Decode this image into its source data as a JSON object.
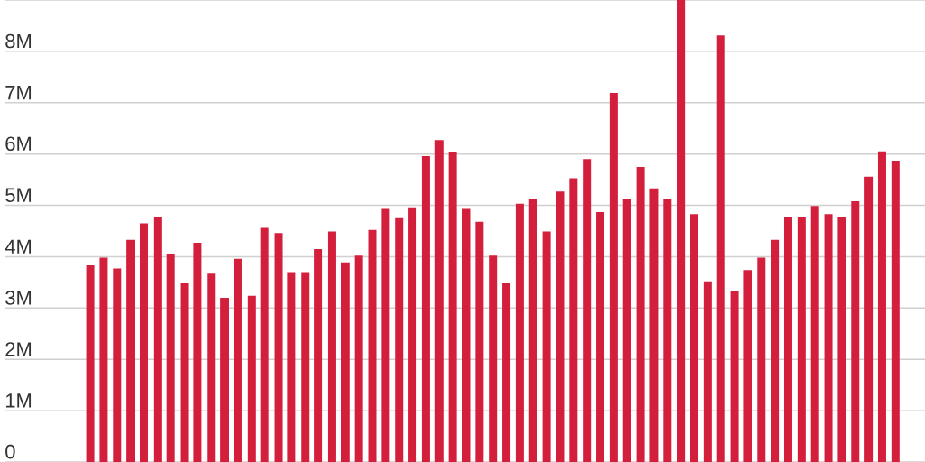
{
  "chart_data": {
    "type": "bar",
    "categories": [
      null,
      null,
      null,
      null,
      null,
      null,
      null,
      null,
      null,
      null,
      null,
      null,
      null,
      null,
      null,
      null,
      null,
      null,
      null,
      null,
      null,
      null,
      null,
      null,
      null,
      null,
      null,
      null,
      null,
      null,
      null,
      null,
      null,
      null,
      null,
      null,
      null,
      null,
      null,
      null,
      null,
      null,
      null,
      null,
      null,
      null,
      null,
      null,
      null,
      null,
      null,
      null,
      null,
      null,
      null,
      null,
      null,
      null,
      null,
      null,
      null
    ],
    "values": [
      3830000,
      3980000,
      3770000,
      4330000,
      4650000,
      4770000,
      4050000,
      3480000,
      4270000,
      3670000,
      3200000,
      3960000,
      3240000,
      4560000,
      4460000,
      3700000,
      3700000,
      4150000,
      4490000,
      3890000,
      4020000,
      4520000,
      4930000,
      4750000,
      4960000,
      5960000,
      6270000,
      6030000,
      4930000,
      4680000,
      4020000,
      3480000,
      5030000,
      5120000,
      4490000,
      5270000,
      5530000,
      5900000,
      4870000,
      7190000,
      5120000,
      5750000,
      5330000,
      5120000,
      9000000,
      4830000,
      3520000,
      8310000,
      3330000,
      3740000,
      3980000,
      4330000,
      4770000,
      4770000,
      4990000,
      4830000,
      4770000,
      5080000,
      5560000,
      6050000,
      5870000
    ],
    "color": "#d41f3c",
    "ylim": [
      0,
      9000000
    ],
    "yticks": [
      {
        "value": 0,
        "label": "0"
      },
      {
        "value": 1000000,
        "label": "1M"
      },
      {
        "value": 2000000,
        "label": "2M"
      },
      {
        "value": 3000000,
        "label": "3M"
      },
      {
        "value": 4000000,
        "label": "4M"
      },
      {
        "value": 5000000,
        "label": "5M"
      },
      {
        "value": 6000000,
        "label": "6M"
      },
      {
        "value": 7000000,
        "label": "7M"
      },
      {
        "value": 8000000,
        "label": "8M"
      },
      {
        "value": 9000000,
        "label": null
      }
    ],
    "grid": "y"
  }
}
